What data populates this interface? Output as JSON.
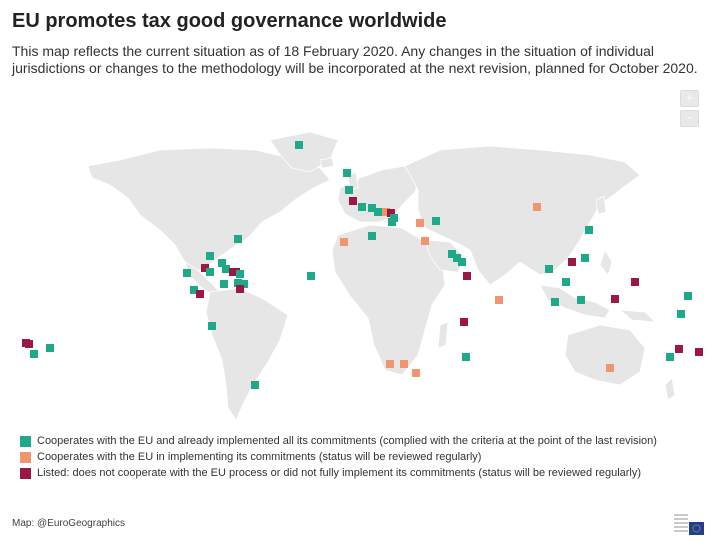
{
  "title": "EU promotes tax good governance worldwide",
  "subtitle": "This map reflects the current situation as of 18 February 2020. Any changes in the situation of individual jurisdictions or changes to the methodology will be incorporated at the next revision, planned for October 2020.",
  "zoom": {
    "in_label": "+",
    "out_label": "-"
  },
  "colors": {
    "land": "#e8e8e8",
    "border": "#ffffff",
    "ocean": "#ffffff",
    "cooperating": "#1ea98b",
    "in_progress": "#f0956f",
    "listed": "#9b1744"
  },
  "legend": [
    {
      "key": "cooperating",
      "label": "Cooperates with the EU and already implemented all its commitments (complied with the criteria at the point of the last revision)"
    },
    {
      "key": "in_progress",
      "label": "Cooperates with the EU in implementing its commitments (status will be reviewed regularly)"
    },
    {
      "key": "listed",
      "label": "Listed: does not cooperate with the EU process or did not fully implement its commitments (status will be reviewed regularly)"
    }
  ],
  "credit": "Map: @EuroGeographics",
  "logo": "eu-council-logo"
}
